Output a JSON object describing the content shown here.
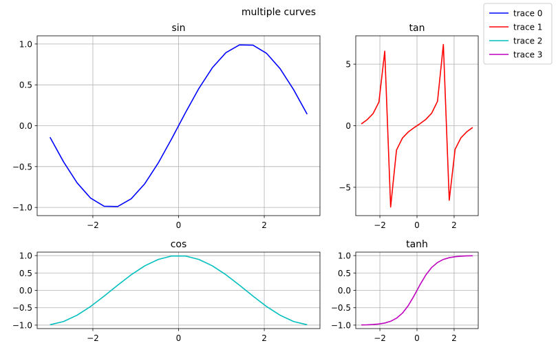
{
  "figure": {
    "suptitle": "multiple curves"
  },
  "legend": {
    "placement": "top-right",
    "entries": [
      {
        "label": "trace 0",
        "color": "#0000ff"
      },
      {
        "label": "trace 1",
        "color": "#ff0000"
      },
      {
        "label": "trace 2",
        "color": "#00bfbf"
      },
      {
        "label": "trace 3",
        "color": "#bf00bf"
      }
    ]
  },
  "chart_data": [
    {
      "type": "line",
      "title": "sin",
      "xlabel": "",
      "ylabel": "",
      "grid": true,
      "xlim": [
        -3.3,
        3.3
      ],
      "ylim": [
        -1.1,
        1.1
      ],
      "xticks": [
        -2,
        0,
        2
      ],
      "yticks": [
        -1.0,
        -0.5,
        0.0,
        0.5,
        1.0
      ],
      "xtick_labels": [
        "−2",
        "0",
        "2"
      ],
      "ytick_labels": [
        "−1.0",
        "−0.5",
        "0.0",
        "0.5",
        "1.0"
      ],
      "series": [
        {
          "color": "#0000ff",
          "x": [
            -3.0,
            -2.684,
            -2.368,
            -2.053,
            -1.737,
            -1.421,
            -1.105,
            -0.789,
            -0.474,
            -0.158,
            0.158,
            0.474,
            0.789,
            1.105,
            1.421,
            1.737,
            2.053,
            2.368,
            2.684,
            3.0
          ],
          "y": [
            -0.141,
            -0.442,
            -0.699,
            -0.886,
            -0.986,
            -0.989,
            -0.894,
            -0.71,
            -0.456,
            -0.157,
            0.157,
            0.456,
            0.71,
            0.894,
            0.989,
            0.986,
            0.886,
            0.699,
            0.442,
            0.141
          ]
        }
      ]
    },
    {
      "type": "line",
      "title": "tan",
      "xlabel": "",
      "ylabel": "",
      "grid": true,
      "xlim": [
        -3.3,
        3.3
      ],
      "ylim": [
        -7.3,
        7.3
      ],
      "xticks": [
        -2,
        0,
        2
      ],
      "yticks": [
        -5,
        0,
        5
      ],
      "xtick_labels": [
        "−2",
        "0",
        "2"
      ],
      "ytick_labels": [
        "−5",
        "0",
        "5"
      ],
      "series": [
        {
          "color": "#ff0000",
          "x": [
            -3.0,
            -2.684,
            -2.368,
            -2.053,
            -1.737,
            -1.421,
            -1.105,
            -0.789,
            -0.474,
            -0.158,
            0.158,
            0.474,
            0.789,
            1.105,
            1.421,
            1.737,
            2.053,
            2.368,
            2.684,
            3.0
          ],
          "y": [
            0.143,
            0.491,
            0.981,
            1.913,
            6.05,
            -6.6,
            -1.982,
            -1.013,
            -0.512,
            -0.159,
            0.159,
            0.512,
            1.013,
            1.982,
            6.6,
            -6.05,
            -1.913,
            -0.981,
            -0.491,
            -0.143
          ]
        }
      ]
    },
    {
      "type": "line",
      "title": "cos",
      "xlabel": "",
      "ylabel": "",
      "grid": true,
      "xlim": [
        -3.3,
        3.3
      ],
      "ylim": [
        -1.1,
        1.1
      ],
      "xticks": [
        -2,
        0,
        2
      ],
      "yticks": [
        -1.0,
        -0.5,
        0.0,
        0.5,
        1.0
      ],
      "xtick_labels": [
        "−2",
        "0",
        "2"
      ],
      "ytick_labels": [
        "−1.0",
        "−0.5",
        "0.0",
        "0.5",
        "1.0"
      ],
      "series": [
        {
          "color": "#00bfbf",
          "x": [
            -3.0,
            -2.684,
            -2.368,
            -2.053,
            -1.737,
            -1.421,
            -1.105,
            -0.789,
            -0.474,
            -0.158,
            0.158,
            0.474,
            0.789,
            1.105,
            1.421,
            1.737,
            2.053,
            2.368,
            2.684,
            3.0
          ],
          "y": [
            -0.99,
            -0.897,
            -0.715,
            -0.464,
            -0.166,
            0.149,
            0.449,
            0.705,
            0.89,
            0.988,
            0.988,
            0.89,
            0.705,
            0.449,
            0.149,
            -0.166,
            -0.464,
            -0.715,
            -0.897,
            -0.99
          ]
        }
      ]
    },
    {
      "type": "line",
      "title": "tanh",
      "xlabel": "",
      "ylabel": "",
      "grid": true,
      "xlim": [
        -3.3,
        3.3
      ],
      "ylim": [
        -1.1,
        1.1
      ],
      "xticks": [
        -2,
        0,
        2
      ],
      "yticks": [
        -1.0,
        -0.5,
        0.0,
        0.5,
        1.0
      ],
      "xtick_labels": [
        "−2",
        "0",
        "2"
      ],
      "ytick_labels": [
        "−1.0",
        "−0.5",
        "0.0",
        "0.5",
        "1.0"
      ],
      "series": [
        {
          "color": "#bf00bf",
          "x": [
            -3.0,
            -2.684,
            -2.368,
            -2.053,
            -1.737,
            -1.421,
            -1.105,
            -0.789,
            -0.474,
            -0.158,
            0.158,
            0.474,
            0.789,
            1.105,
            1.421,
            1.737,
            2.053,
            2.368,
            2.684,
            3.0
          ],
          "y": [
            -0.995,
            -0.991,
            -0.983,
            -0.967,
            -0.94,
            -0.89,
            -0.802,
            -0.658,
            -0.441,
            -0.157,
            0.157,
            0.441,
            0.658,
            0.802,
            0.89,
            0.94,
            0.967,
            0.983,
            0.991,
            0.995
          ]
        }
      ]
    }
  ]
}
